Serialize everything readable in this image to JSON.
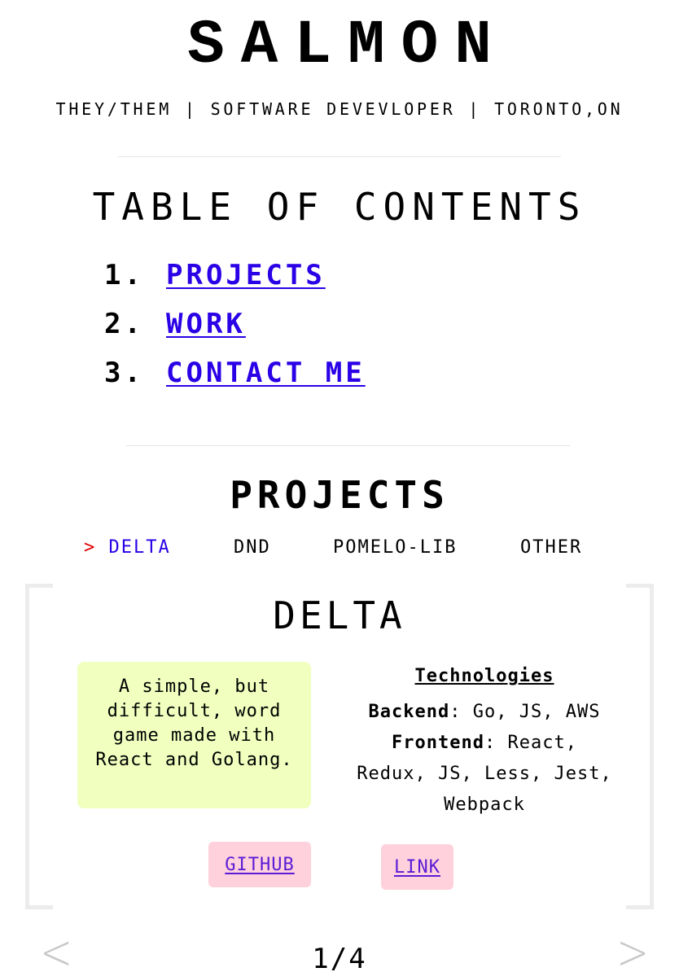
{
  "header": {
    "title": "SALMON",
    "tagline": "THEY/THEM | SOFTWARE DEVEVLOPER | TORONTO,ON"
  },
  "toc": {
    "heading": "TABLE OF CONTENTS",
    "items": [
      {
        "number": "1.",
        "label": "PROJECTS"
      },
      {
        "number": "2.",
        "label": "WORK"
      },
      {
        "number": "3.",
        "label": "CONTACT ME"
      }
    ]
  },
  "projects": {
    "heading": "PROJECTS",
    "active_marker": ">",
    "tabs": [
      {
        "label": "DELTA",
        "active": true
      },
      {
        "label": "DND",
        "active": false
      },
      {
        "label": "POMELO-LIB",
        "active": false
      },
      {
        "label": "OTHER",
        "active": false
      }
    ],
    "card": {
      "title": "DELTA",
      "description": "A simple, but difficult, word game made with React and Golang.",
      "technologies_heading": "Technologies",
      "backend_label": "Backend",
      "backend_value": ": Go, JS, AWS",
      "frontend_label": "Frontend",
      "frontend_value": ": React, Redux, JS, Less, Jest, Webpack",
      "github_label": "GITHUB",
      "link_label": "LINK"
    },
    "pager": {
      "prev_icon": "<",
      "next_icon": ">",
      "count": "1/4"
    }
  },
  "colors": {
    "link": "#2a00e6",
    "active_marker": "#e00000",
    "description_bg": "#f1ffbf",
    "button_bg": "#ffd1dc"
  }
}
